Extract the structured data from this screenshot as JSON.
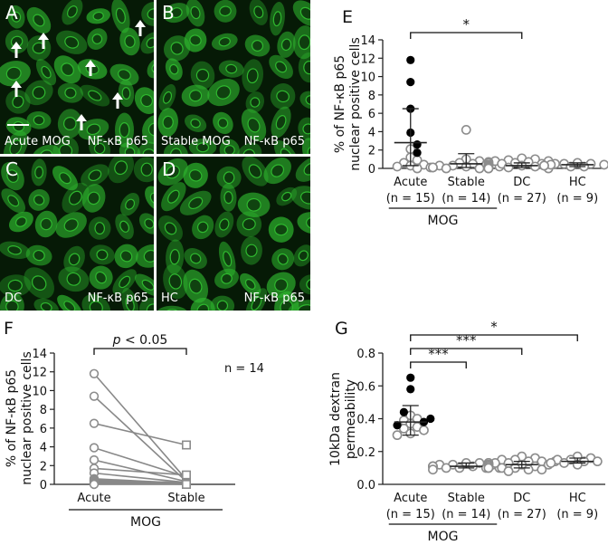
{
  "micrographs": [
    {
      "letter": "A",
      "left_caption": "Acute MOG",
      "right_caption": "NF-κB p65"
    },
    {
      "letter": "B",
      "left_caption": "Stable MOG",
      "right_caption": "NF-κB p65"
    },
    {
      "letter": "C",
      "left_caption": "DC",
      "right_caption": "NF-κB p65"
    },
    {
      "letter": "D",
      "left_caption": "HC",
      "right_caption": "NF-κB p65"
    }
  ],
  "colors": {
    "fluorescence": "#2fb82f",
    "background": "#061a06",
    "filled_point": "#000000",
    "open_point": "#8c8c8c"
  },
  "chart_data": [
    {
      "panel": "E",
      "type": "scatter",
      "ylabel": "% of NF-κB p65\nnuclear positive cells",
      "ylim": [
        0,
        14
      ],
      "yticks": [
        0,
        2,
        4,
        6,
        8,
        10,
        12,
        14
      ],
      "categories": [
        "Acute",
        "Stable",
        "DC",
        "HC"
      ],
      "category_n": [
        "(n = 15)",
        "(n = 14)",
        "(n = 27)",
        "(n = 9)"
      ],
      "group_label": "MOG",
      "significance": [
        {
          "from": "Acute",
          "to": "DC",
          "label": "*"
        }
      ],
      "summary": {
        "Acute": {
          "median": 2.8,
          "low": 0.3,
          "high": 6.5
        },
        "Stable": {
          "median": 0.5,
          "low": 0.1,
          "high": 1.6
        },
        "DC": {
          "median": 0.3,
          "low": 0.1,
          "high": 0.6
        },
        "HC": {
          "median": 0.4,
          "low": 0.2,
          "high": 0.6
        }
      },
      "points": {
        "Acute": {
          "filled": [
            11.8,
            9.4,
            6.5,
            3.9,
            2.6,
            1.7
          ],
          "open": [
            2.1,
            1.2,
            0.9,
            0.6,
            0.4,
            0.3,
            0.2,
            0.1,
            0.0
          ]
        },
        "Stable": {
          "filled": [],
          "open": [
            4.2,
            1.0,
            0.8,
            0.6,
            0.5,
            0.4,
            0.3,
            0.3,
            0.2,
            0.2,
            0.1,
            0.1,
            0.0,
            0.0
          ]
        },
        "DC": {
          "filled": [],
          "open": [
            1.1,
            1.0,
            0.9,
            0.8,
            0.8,
            0.7,
            0.7,
            0.6,
            0.6,
            0.5,
            0.5,
            0.5,
            0.4,
            0.4,
            0.4,
            0.3,
            0.3,
            0.3,
            0.2,
            0.2,
            0.2,
            0.1,
            0.1,
            0.1,
            0.0,
            0.0,
            0.0
          ]
        },
        "HC": {
          "filled": [],
          "open": [
            0.6,
            0.5,
            0.5,
            0.4,
            0.4,
            0.3,
            0.3,
            0.2,
            0.2
          ]
        }
      }
    },
    {
      "panel": "F",
      "type": "line",
      "ylabel": "% of NF-κB p65\nnuclear positive cells",
      "ylim": [
        0,
        14
      ],
      "yticks": [
        0,
        2,
        4,
        6,
        8,
        10,
        12,
        14
      ],
      "categories": [
        "Acute",
        "Stable"
      ],
      "group_label": "MOG",
      "annotation": "n = 14",
      "significance": [
        {
          "from": "Acute",
          "to": "Stable",
          "label_italic": "p",
          "label_rest": " < 0.05"
        }
      ],
      "pairs": [
        [
          11.8,
          0.5
        ],
        [
          9.4,
          0.3
        ],
        [
          6.5,
          4.2
        ],
        [
          3.9,
          0.8
        ],
        [
          2.6,
          0.3
        ],
        [
          1.7,
          1.0
        ],
        [
          1.2,
          0.2
        ],
        [
          0.6,
          0.1
        ],
        [
          0.5,
          0.0
        ],
        [
          0.4,
          0.2
        ],
        [
          0.3,
          0.1
        ],
        [
          0.2,
          0.0
        ],
        [
          0.1,
          0.1
        ],
        [
          0.0,
          0.0
        ]
      ]
    },
    {
      "panel": "G",
      "type": "scatter",
      "ylabel": "10kDa dextran\npermeability",
      "ylim": [
        0,
        0.8
      ],
      "yticks": [
        0,
        0.2,
        0.4,
        0.6,
        0.8
      ],
      "ytick_labels": [
        "0.0",
        "0.2",
        "0.4",
        "0.6",
        "0.8"
      ],
      "categories": [
        "Acute",
        "Stable",
        "DC",
        "HC"
      ],
      "category_n": [
        "(n = 15)",
        "(n = 14)",
        "(n = 27)",
        "(n = 9)"
      ],
      "group_label": "MOG",
      "significance": [
        {
          "from": "Acute",
          "to": "Stable",
          "label": "***"
        },
        {
          "from": "Acute",
          "to": "DC",
          "label": "***"
        },
        {
          "from": "Acute",
          "to": "HC",
          "label": "*"
        }
      ],
      "summary": {
        "Acute": {
          "median": 0.38,
          "low": 0.3,
          "high": 0.48
        },
        "Stable": {
          "median": 0.11,
          "low": 0.1,
          "high": 0.13
        },
        "DC": {
          "median": 0.12,
          "low": 0.1,
          "high": 0.14
        },
        "HC": {
          "median": 0.14,
          "low": 0.13,
          "high": 0.16
        }
      },
      "points": {
        "Acute": {
          "filled": [
            0.65,
            0.58,
            0.44,
            0.4,
            0.38,
            0.36
          ],
          "open": [
            0.42,
            0.4,
            0.39,
            0.37,
            0.35,
            0.34,
            0.33,
            0.31,
            0.3
          ]
        },
        "Stable": {
          "filled": [],
          "open": [
            0.13,
            0.13,
            0.12,
            0.12,
            0.12,
            0.11,
            0.11,
            0.11,
            0.11,
            0.1,
            0.1,
            0.1,
            0.1,
            0.09
          ]
        },
        "DC": {
          "filled": [],
          "open": [
            0.17,
            0.16,
            0.15,
            0.15,
            0.14,
            0.14,
            0.14,
            0.13,
            0.13,
            0.13,
            0.13,
            0.12,
            0.12,
            0.12,
            0.12,
            0.12,
            0.11,
            0.11,
            0.11,
            0.11,
            0.1,
            0.1,
            0.1,
            0.1,
            0.09,
            0.09,
            0.08
          ]
        },
        "HC": {
          "filled": [],
          "open": [
            0.17,
            0.16,
            0.15,
            0.15,
            0.14,
            0.14,
            0.13,
            0.13,
            0.12
          ]
        }
      }
    }
  ]
}
